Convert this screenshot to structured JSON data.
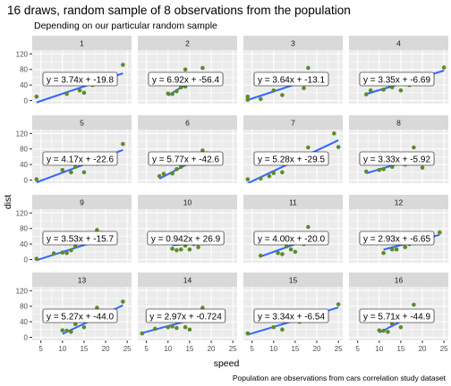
{
  "chart_data": {
    "type": "scatter",
    "title": "16 draws, random sample of 8 observations from the population",
    "subtitle": "Depending on our particular random sample",
    "xlabel": "speed",
    "ylabel": "dist",
    "caption": "Population are observations from cars correlation study dataset",
    "xlim": [
      3,
      26
    ],
    "ylim": [
      -8,
      130
    ],
    "x_ticks": [
      5,
      10,
      15,
      20,
      25
    ],
    "y_ticks": [
      0,
      40,
      80,
      120
    ],
    "point_color": "#5b8c2a",
    "line_color": "#3366ff",
    "panels": [
      {
        "label": "1",
        "equation": "y = 3.74x + -19.8",
        "slope": 3.74,
        "intercept": -19.8,
        "points": [
          [
            4,
            10
          ],
          [
            11,
            17
          ],
          [
            14,
            26
          ],
          [
            15,
            20
          ],
          [
            17,
            40
          ],
          [
            19,
            46
          ],
          [
            22,
            66
          ],
          [
            24,
            92
          ]
        ]
      },
      {
        "label": "2",
        "equation": "y = 6.92x + -56.4",
        "slope": 6.92,
        "intercept": -56.4,
        "points": [
          [
            10,
            18
          ],
          [
            11,
            17
          ],
          [
            12,
            24
          ],
          [
            13,
            34
          ],
          [
            14,
            36
          ],
          [
            16,
            54
          ],
          [
            18,
            84
          ],
          [
            14,
            80
          ]
        ]
      },
      {
        "label": "3",
        "equation": "y = 3.64x + -13.1",
        "slope": 3.64,
        "intercept": -13.1,
        "points": [
          [
            4,
            2
          ],
          [
            4,
            10
          ],
          [
            7,
            4
          ],
          [
            10,
            26
          ],
          [
            12,
            14
          ],
          [
            13,
            46
          ],
          [
            18,
            84
          ],
          [
            17,
            32
          ]
        ]
      },
      {
        "label": "4",
        "equation": "y = 3.35x + -6.69",
        "slope": 3.35,
        "intercept": -6.69,
        "points": [
          [
            7,
            16
          ],
          [
            11,
            28
          ],
          [
            13,
            34
          ],
          [
            15,
            26
          ],
          [
            17,
            40
          ],
          [
            19,
            68
          ],
          [
            25,
            85
          ],
          [
            8,
            26
          ]
        ]
      },
      {
        "label": "5",
        "equation": "y = 4.17x + -22.6",
        "slope": 4.17,
        "intercept": -22.6,
        "points": [
          [
            4,
            2
          ],
          [
            10,
            26
          ],
          [
            12,
            20
          ],
          [
            13,
            34
          ],
          [
            15,
            20
          ],
          [
            18,
            42
          ],
          [
            20,
            64
          ],
          [
            24,
            93
          ]
        ]
      },
      {
        "label": "6",
        "equation": "y = 5.77x + -42.6",
        "slope": 5.77,
        "intercept": -42.6,
        "points": [
          [
            8,
            10
          ],
          [
            9,
            16
          ],
          [
            11,
            17
          ],
          [
            12,
            28
          ],
          [
            13,
            34
          ],
          [
            15,
            54
          ],
          [
            18,
            76
          ],
          [
            19,
            68
          ]
        ]
      },
      {
        "label": "7",
        "equation": "y = 5.28x + -29.5",
        "slope": 5.28,
        "intercept": -29.5,
        "points": [
          [
            4,
            2
          ],
          [
            7,
            4
          ],
          [
            9,
            10
          ],
          [
            10,
            18
          ],
          [
            12,
            20
          ],
          [
            18,
            84
          ],
          [
            24,
            120
          ],
          [
            25,
            85
          ]
        ]
      },
      {
        "label": "8",
        "equation": "y = 3.33x + -5.92",
        "slope": 3.33,
        "intercept": -5.92,
        "points": [
          [
            7,
            22
          ],
          [
            10,
            26
          ],
          [
            11,
            28
          ],
          [
            13,
            34
          ],
          [
            14,
            60
          ],
          [
            16,
            40
          ],
          [
            18,
            84
          ],
          [
            20,
            32
          ]
        ]
      },
      {
        "label": "9",
        "equation": "y = 3.53x + -15.7",
        "slope": 3.53,
        "intercept": -15.7,
        "points": [
          [
            4,
            2
          ],
          [
            8,
            16
          ],
          [
            10,
            18
          ],
          [
            11,
            17
          ],
          [
            12,
            24
          ],
          [
            13,
            34
          ],
          [
            18,
            76
          ],
          [
            19,
            68
          ]
        ]
      },
      {
        "label": "10",
        "equation": "y = 0.942x + 26.9",
        "slope": 0.942,
        "intercept": 26.9,
        "points": [
          [
            11,
            28
          ],
          [
            12,
            24
          ],
          [
            13,
            26
          ],
          [
            14,
            36
          ],
          [
            15,
            26
          ],
          [
            16,
            40
          ],
          [
            17,
            32
          ],
          [
            18,
            42
          ]
        ]
      },
      {
        "label": "11",
        "equation": "y = 4.00x + -20.0",
        "slope": 4.0,
        "intercept": -20.0,
        "points": [
          [
            7,
            10
          ],
          [
            11,
            17
          ],
          [
            12,
            14
          ],
          [
            13,
            34
          ],
          [
            14,
            26
          ],
          [
            15,
            20
          ],
          [
            17,
            40
          ],
          [
            18,
            84
          ]
        ]
      },
      {
        "label": "12",
        "equation": "y = 2.93x + -6.65",
        "slope": 2.93,
        "intercept": -6.65,
        "points": [
          [
            11,
            17
          ],
          [
            13,
            26
          ],
          [
            14,
            26
          ],
          [
            16,
            32
          ],
          [
            17,
            40
          ],
          [
            19,
            46
          ],
          [
            20,
            48
          ],
          [
            24,
            70
          ]
        ]
      },
      {
        "label": "13",
        "equation": "y = 5.27x + -44.0",
        "slope": 5.27,
        "intercept": -44.0,
        "points": [
          [
            10,
            18
          ],
          [
            11,
            17
          ],
          [
            12,
            14
          ],
          [
            13,
            34
          ],
          [
            15,
            26
          ],
          [
            18,
            76
          ],
          [
            20,
            48
          ],
          [
            24,
            92
          ]
        ]
      },
      {
        "label": "14",
        "equation": "y = 2.97x + -0.724",
        "slope": 2.97,
        "intercept": -0.724,
        "points": [
          [
            4,
            10
          ],
          [
            7,
            22
          ],
          [
            10,
            26
          ],
          [
            11,
            28
          ],
          [
            12,
            24
          ],
          [
            14,
            26
          ],
          [
            15,
            20
          ],
          [
            18,
            76
          ]
        ]
      },
      {
        "label": "15",
        "equation": "y = 3.34x + -6.54",
        "slope": 3.34,
        "intercept": -6.54,
        "points": [
          [
            4,
            10
          ],
          [
            10,
            26
          ],
          [
            12,
            20
          ],
          [
            13,
            46
          ],
          [
            14,
            60
          ],
          [
            16,
            40
          ],
          [
            18,
            56
          ],
          [
            25,
            85
          ]
        ]
      },
      {
        "label": "16",
        "equation": "y = 5.71x + -44.9",
        "slope": 5.71,
        "intercept": -44.9,
        "points": [
          [
            10,
            18
          ],
          [
            11,
            17
          ],
          [
            12,
            14
          ],
          [
            13,
            34
          ],
          [
            15,
            26
          ],
          [
            17,
            50
          ],
          [
            18,
            84
          ],
          [
            20,
            64
          ]
        ]
      }
    ]
  }
}
